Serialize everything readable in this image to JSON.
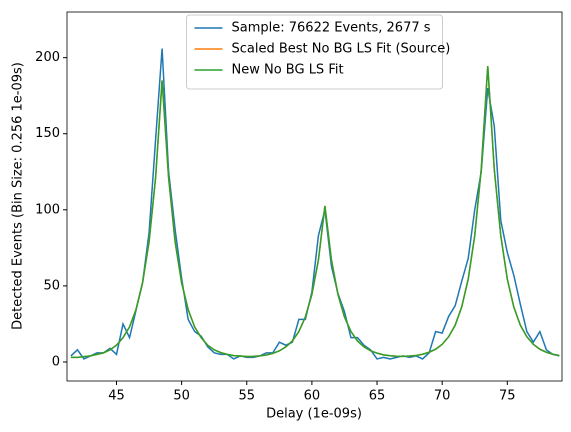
{
  "chart_data": {
    "type": "line",
    "xlabel": "Delay (1e-09s)",
    "ylabel": "Detected Events (Bin Size: 0.256 1e-09s)",
    "x": [
      41.5,
      42,
      42.5,
      43,
      43.5,
      44,
      44.5,
      45,
      45.5,
      46,
      46.5,
      47,
      47.5,
      48,
      48.5,
      49,
      49.5,
      50,
      50.5,
      51,
      51.5,
      52,
      52.5,
      53,
      53.5,
      54,
      54.5,
      55,
      55.5,
      56,
      56.5,
      57,
      57.5,
      58,
      58.5,
      59,
      59.5,
      60,
      60.5,
      61,
      61.5,
      62,
      62.5,
      63,
      63.5,
      64,
      64.5,
      65,
      65.5,
      66,
      66.5,
      67,
      67.5,
      68,
      68.5,
      69,
      69.5,
      70,
      70.5,
      71,
      71.5,
      72,
      72.5,
      73,
      73.5,
      74,
      74.5,
      75,
      75.5,
      76,
      76.5,
      77,
      77.5,
      78,
      78.5,
      79
    ],
    "series": [
      {
        "name": "Sample: 76622 Events, 2677 s",
        "color": "#1f77b4",
        "values": [
          4,
          8,
          2,
          4,
          6,
          6,
          9,
          5,
          25,
          16,
          34,
          52,
          85,
          146,
          206,
          125,
          87,
          55,
          28,
          20,
          17,
          10,
          6,
          5,
          5,
          2,
          4,
          3,
          3,
          4,
          6,
          6,
          13,
          11,
          13,
          28,
          28,
          46,
          83,
          100,
          63,
          45,
          33,
          16,
          16,
          11,
          8,
          2,
          3,
          2,
          3,
          4,
          3,
          4,
          2,
          6,
          20,
          19,
          30,
          37,
          53,
          68,
          100,
          125,
          180,
          155,
          93,
          72,
          57,
          38,
          20,
          13,
          20,
          8,
          5,
          4
        ]
      },
      {
        "name": "Scaled Best No BG LS Fit (Source)",
        "color": "#ff7f0e",
        "values": [
          3,
          3,
          3.5,
          4,
          5,
          6,
          8,
          11,
          16,
          23,
          34.5,
          52,
          79,
          121,
          185,
          121,
          79,
          52,
          34.5,
          23,
          16,
          11,
          8,
          6.2,
          5,
          4.2,
          3.9,
          3.6,
          3.7,
          4,
          4.6,
          5.6,
          7.3,
          9.9,
          13.8,
          20,
          29.6,
          44.4,
          67,
          102.5,
          67,
          44.4,
          29.6,
          20,
          13.8,
          9.9,
          7.4,
          5.8,
          4.7,
          4.1,
          3.8,
          3.7,
          3.9,
          4.3,
          5.1,
          6.4,
          8.4,
          11.6,
          16.6,
          24.2,
          36.1,
          54.5,
          83,
          126.7,
          194.5,
          126.7,
          83,
          54.5,
          36.1,
          24.2,
          16.6,
          11.6,
          8.4,
          6.4,
          5.1,
          4.3
        ]
      },
      {
        "name": "New No BG LS Fit",
        "color": "#2ca02c",
        "values": [
          3,
          3,
          3.5,
          4,
          5,
          6,
          8,
          11,
          16,
          23,
          34.5,
          52,
          79,
          121,
          185,
          121,
          79,
          52,
          34.5,
          23,
          16,
          11,
          8,
          6.2,
          5,
          4.2,
          3.9,
          3.6,
          3.7,
          4,
          4.6,
          5.6,
          7.3,
          9.9,
          13.8,
          20,
          29.6,
          44.4,
          67,
          102.5,
          67,
          44.4,
          29.6,
          20,
          13.8,
          9.9,
          7.4,
          5.8,
          4.7,
          4.1,
          3.8,
          3.7,
          3.9,
          4.3,
          5.1,
          6.4,
          8.4,
          11.6,
          16.6,
          24.2,
          36.1,
          54.5,
          83,
          126.7,
          194.5,
          126.7,
          83,
          54.5,
          36.1,
          24.2,
          16.6,
          11.6,
          8.4,
          6.4,
          5.1,
          4.3
        ]
      }
    ],
    "xlim": [
      41.2,
      79.2
    ],
    "xticks": [
      45,
      50,
      55,
      60,
      65,
      70,
      75
    ],
    "ylim": [
      -12.5,
      230
    ],
    "yticks": [
      0,
      50,
      100,
      150,
      200
    ],
    "legend": "upper center",
    "grid": false
  }
}
